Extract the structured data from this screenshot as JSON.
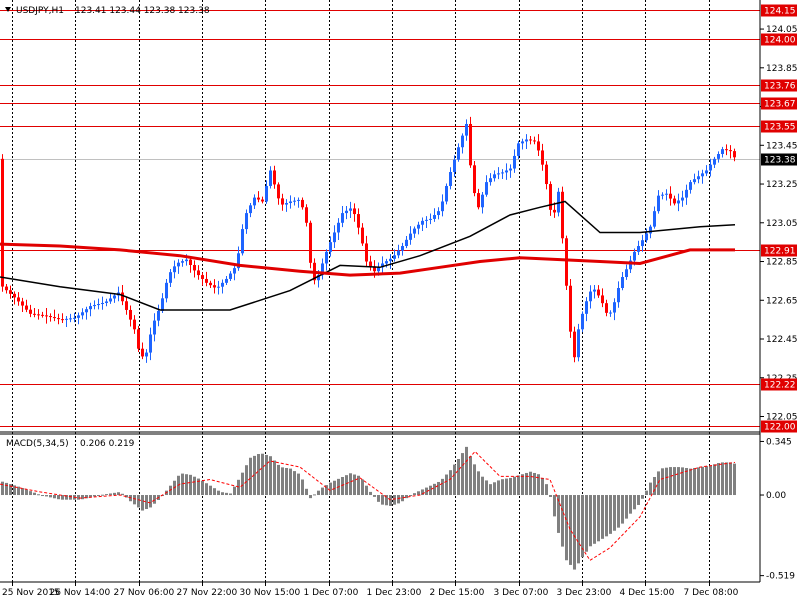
{
  "header": {
    "symbol_label": "USDJPY,H1",
    "ohlc_text": "123.41 123.44 123.38 123.38"
  },
  "colors": {
    "background": "#ffffff",
    "bull": "#1e64ff",
    "bear": "#ff0000",
    "level_line": "#e00000",
    "ma_black": "#000000",
    "ma_red": "#e00000",
    "macd_hist": "#808080",
    "signal": "#ff0000",
    "grid": "#000000"
  },
  "chart_data": [
    {
      "type": "candlestick",
      "title": "USDJPY,H1",
      "y_ticks": [
        "124.05",
        "123.85",
        "123.65",
        "123.45",
        "123.25",
        "123.05",
        "122.85",
        "122.65",
        "122.45",
        "122.25",
        "122.05"
      ],
      "ylim": [
        121.97,
        124.2
      ],
      "x_ticks": [
        "25 Nov 2015",
        "26 Nov 14:00",
        "27 Nov 06:00",
        "27 Nov 22:00",
        "30 Nov 15:00",
        "1 Dec 07:00",
        "1 Dec 23:00",
        "2 Dec 15:00",
        "3 Dec 07:00",
        "3 Dec 23:00",
        "4 Dec 15:00",
        "7 Dec 08:00"
      ],
      "current_price": "123.38",
      "horizontal_levels": [
        "124.15",
        "124.00",
        "123.76",
        "123.67",
        "123.55",
        "122.91",
        "122.22",
        "122.00"
      ],
      "price_path": [
        [
          0,
          122.73
        ],
        [
          15,
          122.66
        ],
        [
          30,
          122.58
        ],
        [
          45,
          122.57
        ],
        [
          60,
          122.55
        ],
        [
          75,
          122.56
        ],
        [
          90,
          122.62
        ],
        [
          105,
          122.64
        ],
        [
          118,
          122.69
        ],
        [
          126,
          122.6
        ],
        [
          134,
          122.5
        ],
        [
          140,
          122.35
        ],
        [
          146,
          122.38
        ],
        [
          152,
          122.52
        ],
        [
          160,
          122.62
        ],
        [
          168,
          122.78
        ],
        [
          176,
          122.84
        ],
        [
          186,
          122.86
        ],
        [
          196,
          122.79
        ],
        [
          206,
          122.74
        ],
        [
          216,
          122.71
        ],
        [
          226,
          122.76
        ],
        [
          236,
          122.83
        ],
        [
          244,
          123.08
        ],
        [
          254,
          123.18
        ],
        [
          262,
          123.16
        ],
        [
          270,
          123.32
        ],
        [
          280,
          123.14
        ],
        [
          290,
          123.16
        ],
        [
          300,
          123.17
        ],
        [
          306,
          123.05
        ],
        [
          312,
          122.74
        ],
        [
          318,
          122.78
        ],
        [
          326,
          122.9
        ],
        [
          334,
          123.0
        ],
        [
          342,
          123.1
        ],
        [
          352,
          123.13
        ],
        [
          360,
          122.99
        ],
        [
          366,
          122.85
        ],
        [
          374,
          122.8
        ],
        [
          382,
          122.84
        ],
        [
          392,
          122.87
        ],
        [
          402,
          122.93
        ],
        [
          412,
          123.01
        ],
        [
          422,
          123.06
        ],
        [
          430,
          123.07
        ],
        [
          440,
          123.12
        ],
        [
          448,
          123.28
        ],
        [
          458,
          123.44
        ],
        [
          466,
          123.56
        ],
        [
          472,
          123.24
        ],
        [
          478,
          123.13
        ],
        [
          486,
          123.26
        ],
        [
          494,
          123.3
        ],
        [
          502,
          123.31
        ],
        [
          510,
          123.33
        ],
        [
          518,
          123.46
        ],
        [
          526,
          123.48
        ],
        [
          534,
          123.47
        ],
        [
          540,
          123.4
        ],
        [
          546,
          123.25
        ],
        [
          552,
          123.05
        ],
        [
          558,
          123.21
        ],
        [
          564,
          122.85
        ],
        [
          568,
          122.6
        ],
        [
          573,
          122.32
        ],
        [
          578,
          122.5
        ],
        [
          584,
          122.62
        ],
        [
          592,
          122.72
        ],
        [
          600,
          122.66
        ],
        [
          608,
          122.56
        ],
        [
          614,
          122.64
        ],
        [
          620,
          122.75
        ],
        [
          626,
          122.81
        ],
        [
          634,
          122.9
        ],
        [
          642,
          122.96
        ],
        [
          650,
          123.03
        ],
        [
          658,
          123.19
        ],
        [
          666,
          123.2
        ],
        [
          674,
          123.15
        ],
        [
          682,
          123.18
        ],
        [
          690,
          123.26
        ],
        [
          698,
          123.29
        ],
        [
          706,
          123.32
        ],
        [
          714,
          123.38
        ],
        [
          722,
          123.43
        ],
        [
          730,
          123.42
        ],
        [
          735,
          123.38
        ]
      ],
      "ma_black": [
        [
          0,
          122.77
        ],
        [
          60,
          122.72
        ],
        [
          120,
          122.68
        ],
        [
          160,
          122.6
        ],
        [
          230,
          122.6
        ],
        [
          290,
          122.7
        ],
        [
          340,
          122.83
        ],
        [
          380,
          122.82
        ],
        [
          420,
          122.88
        ],
        [
          470,
          122.98
        ],
        [
          510,
          123.09
        ],
        [
          540,
          123.13
        ],
        [
          565,
          123.16
        ],
        [
          600,
          123.0
        ],
        [
          640,
          123.0
        ],
        [
          700,
          123.03
        ],
        [
          735,
          123.04
        ]
      ],
      "ma_red": [
        [
          0,
          122.94
        ],
        [
          60,
          122.93
        ],
        [
          120,
          122.91
        ],
        [
          180,
          122.88
        ],
        [
          240,
          122.83
        ],
        [
          300,
          122.8
        ],
        [
          350,
          122.78
        ],
        [
          400,
          122.79
        ],
        [
          440,
          122.82
        ],
        [
          480,
          122.85
        ],
        [
          520,
          122.87
        ],
        [
          560,
          122.86
        ],
        [
          600,
          122.85
        ],
        [
          640,
          122.84
        ],
        [
          690,
          122.91
        ],
        [
          735,
          122.91
        ]
      ]
    },
    {
      "type": "bar",
      "title": "MACD(5,34,5)",
      "values_text": "0.206 0.219",
      "y_ticks": [
        "0.345",
        "0.00",
        "-0.519"
      ],
      "ylim": [
        -0.56,
        0.38
      ],
      "histogram_path": [
        [
          0,
          0.09
        ],
        [
          20,
          0.05
        ],
        [
          40,
          0.0
        ],
        [
          60,
          -0.03
        ],
        [
          80,
          -0.03
        ],
        [
          100,
          0.0
        ],
        [
          120,
          0.02
        ],
        [
          130,
          -0.04
        ],
        [
          142,
          -0.1
        ],
        [
          150,
          -0.08
        ],
        [
          160,
          -0.02
        ],
        [
          170,
          0.06
        ],
        [
          180,
          0.14
        ],
        [
          190,
          0.13
        ],
        [
          200,
          0.1
        ],
        [
          210,
          0.06
        ],
        [
          220,
          0.02
        ],
        [
          230,
          0.01
        ],
        [
          240,
          0.12
        ],
        [
          250,
          0.24
        ],
        [
          260,
          0.27
        ],
        [
          270,
          0.25
        ],
        [
          280,
          0.18
        ],
        [
          290,
          0.17
        ],
        [
          300,
          0.13
        ],
        [
          310,
          -0.02
        ],
        [
          320,
          0.04
        ],
        [
          330,
          0.08
        ],
        [
          340,
          0.11
        ],
        [
          350,
          0.14
        ],
        [
          360,
          0.12
        ],
        [
          370,
          0.02
        ],
        [
          380,
          -0.06
        ],
        [
          390,
          -0.07
        ],
        [
          400,
          -0.05
        ],
        [
          410,
          0.0
        ],
        [
          420,
          0.03
        ],
        [
          430,
          0.06
        ],
        [
          440,
          0.09
        ],
        [
          450,
          0.16
        ],
        [
          460,
          0.25
        ],
        [
          466,
          0.31
        ],
        [
          472,
          0.22
        ],
        [
          480,
          0.13
        ],
        [
          490,
          0.07
        ],
        [
          500,
          0.1
        ],
        [
          510,
          0.11
        ],
        [
          520,
          0.13
        ],
        [
          530,
          0.15
        ],
        [
          540,
          0.13
        ],
        [
          548,
          0.05
        ],
        [
          556,
          -0.2
        ],
        [
          566,
          -0.42
        ],
        [
          574,
          -0.48
        ],
        [
          582,
          -0.4
        ],
        [
          590,
          -0.33
        ],
        [
          600,
          -0.29
        ],
        [
          610,
          -0.25
        ],
        [
          620,
          -0.2
        ],
        [
          630,
          -0.12
        ],
        [
          640,
          -0.05
        ],
        [
          650,
          0.08
        ],
        [
          660,
          0.17
        ],
        [
          670,
          0.18
        ],
        [
          680,
          0.18
        ],
        [
          690,
          0.17
        ],
        [
          700,
          0.18
        ],
        [
          710,
          0.19
        ],
        [
          720,
          0.21
        ],
        [
          730,
          0.21
        ],
        [
          735,
          0.2
        ]
      ],
      "signal_path": [
        [
          0,
          0.07
        ],
        [
          40,
          0.02
        ],
        [
          80,
          -0.02
        ],
        [
          120,
          0.0
        ],
        [
          150,
          -0.05
        ],
        [
          180,
          0.07
        ],
        [
          210,
          0.1
        ],
        [
          240,
          0.05
        ],
        [
          270,
          0.22
        ],
        [
          300,
          0.18
        ],
        [
          330,
          0.03
        ],
        [
          360,
          0.11
        ],
        [
          390,
          -0.03
        ],
        [
          420,
          0.0
        ],
        [
          450,
          0.1
        ],
        [
          475,
          0.28
        ],
        [
          500,
          0.12
        ],
        [
          530,
          0.12
        ],
        [
          550,
          0.1
        ],
        [
          570,
          -0.22
        ],
        [
          590,
          -0.42
        ],
        [
          610,
          -0.34
        ],
        [
          640,
          -0.14
        ],
        [
          660,
          0.1
        ],
        [
          700,
          0.18
        ],
        [
          735,
          0.21
        ]
      ]
    }
  ]
}
